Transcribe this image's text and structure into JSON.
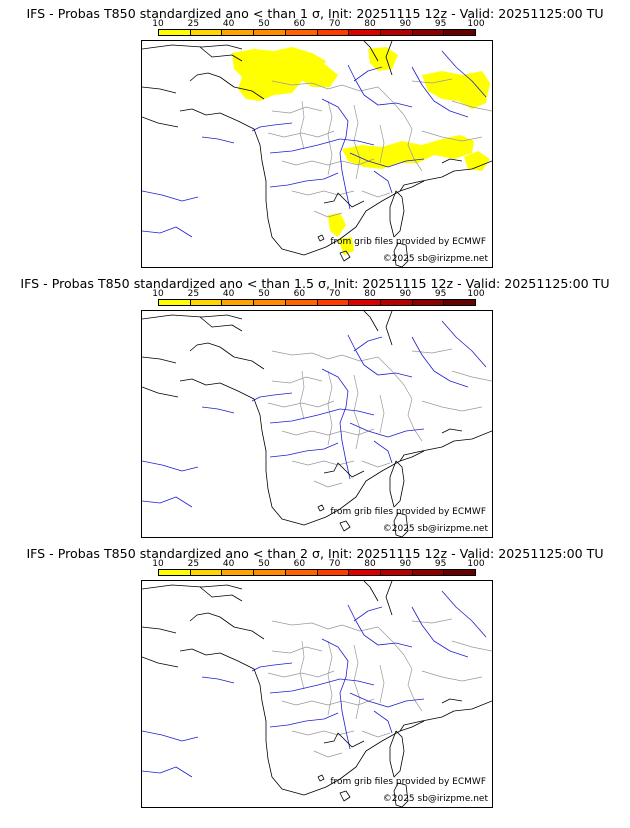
{
  "colorbar": {
    "ticks": [
      "10",
      "25",
      "40",
      "50",
      "60",
      "70",
      "80",
      "90",
      "95",
      "100"
    ],
    "colors": [
      "#ffff00",
      "#ffd700",
      "#ffa500",
      "#ff8c00",
      "#ff6400",
      "#ff3c00",
      "#dc0000",
      "#b40000",
      "#8c0000",
      "#640000"
    ]
  },
  "panels": [
    {
      "title": "IFS - Probas T850  standardized ano < than 1 σ, Init: 20251115 12z - Valid: 20251125:00 TU",
      "credit_source": "from grib files provided by ECMWF",
      "credit_copyright": "©2025 sb@irizpme.net",
      "has_probability_fill": true
    },
    {
      "title": "IFS - Probas T850  standardized ano < than 1.5 σ, Init: 20251115 12z - Valid: 20251125:00 TU",
      "credit_source": "from grib files provided by ECMWF",
      "credit_copyright": "©2025 sb@irizpme.net",
      "has_probability_fill": false
    },
    {
      "title": "IFS - Probas T850  standardized ano < than 2 σ, Init: 20251115 12z - Valid: 20251125:00 TU",
      "credit_source": "from grib files provided by ECMWF",
      "credit_copyright": "©2025 sb@irizpme.net",
      "has_probability_fill": false
    }
  ],
  "map_colors": {
    "coast": "#000000",
    "rivers": "#2020d0",
    "borders": "#9a9a9a",
    "fill": "#ffff00"
  }
}
